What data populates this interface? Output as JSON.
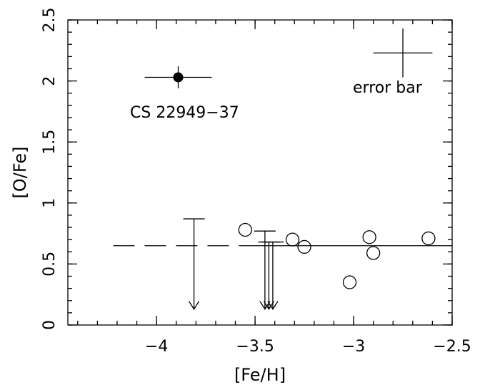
{
  "chart_data": {
    "type": "scatter",
    "title": "",
    "xlabel": "[Fe/H]",
    "ylabel": "[O/Fe]",
    "xlim": [
      -4.45,
      -2.5
    ],
    "ylim": [
      0,
      2.5
    ],
    "x_ticks": [
      -4,
      -3.5,
      -3,
      -2.5
    ],
    "x_tick_labels": [
      "−4",
      "−3.5",
      "−3",
      "−2.5"
    ],
    "y_ticks": [
      0,
      0.5,
      1,
      1.5,
      2,
      2.5
    ],
    "y_tick_labels": [
      "0",
      "0.5",
      "1",
      "1.5",
      "2",
      "2.5"
    ],
    "grid": false,
    "series": [
      {
        "marker": "filled-circle",
        "label": "CS 22949−37",
        "points": [
          {
            "x": -3.89,
            "y": 2.03,
            "xerr": 0.17,
            "yerr": 0.09
          }
        ]
      },
      {
        "marker": "open-circle",
        "points": [
          {
            "x": -3.55,
            "y": 0.78
          },
          {
            "x": -3.31,
            "y": 0.7
          },
          {
            "x": -3.25,
            "y": 0.64
          },
          {
            "x": -3.02,
            "y": 0.35
          },
          {
            "x": -2.92,
            "y": 0.72
          },
          {
            "x": -2.9,
            "y": 0.59
          },
          {
            "x": -2.62,
            "y": 0.71
          }
        ]
      },
      {
        "marker": "upper-limit",
        "points": [
          {
            "x": -3.81,
            "y": 0.87,
            "to": 0.13
          },
          {
            "x": -3.45,
            "y": 0.77,
            "to": 0.13
          },
          {
            "x": -3.43,
            "y": 0.68,
            "to": 0.13
          },
          {
            "x": -3.41,
            "y": 0.68,
            "to": 0.13
          }
        ]
      }
    ],
    "reference_lines": [
      {
        "style": "dashed",
        "y": 0.65,
        "x_from": -4.22,
        "x_to": -3.57
      },
      {
        "style": "solid",
        "y": 0.65,
        "x_from": -3.57,
        "x_to": -2.5
      }
    ],
    "error_bar_key": {
      "label": "error bar",
      "x": -2.75,
      "y": 2.23,
      "xerr": 0.15,
      "yerr": 0.2
    }
  }
}
